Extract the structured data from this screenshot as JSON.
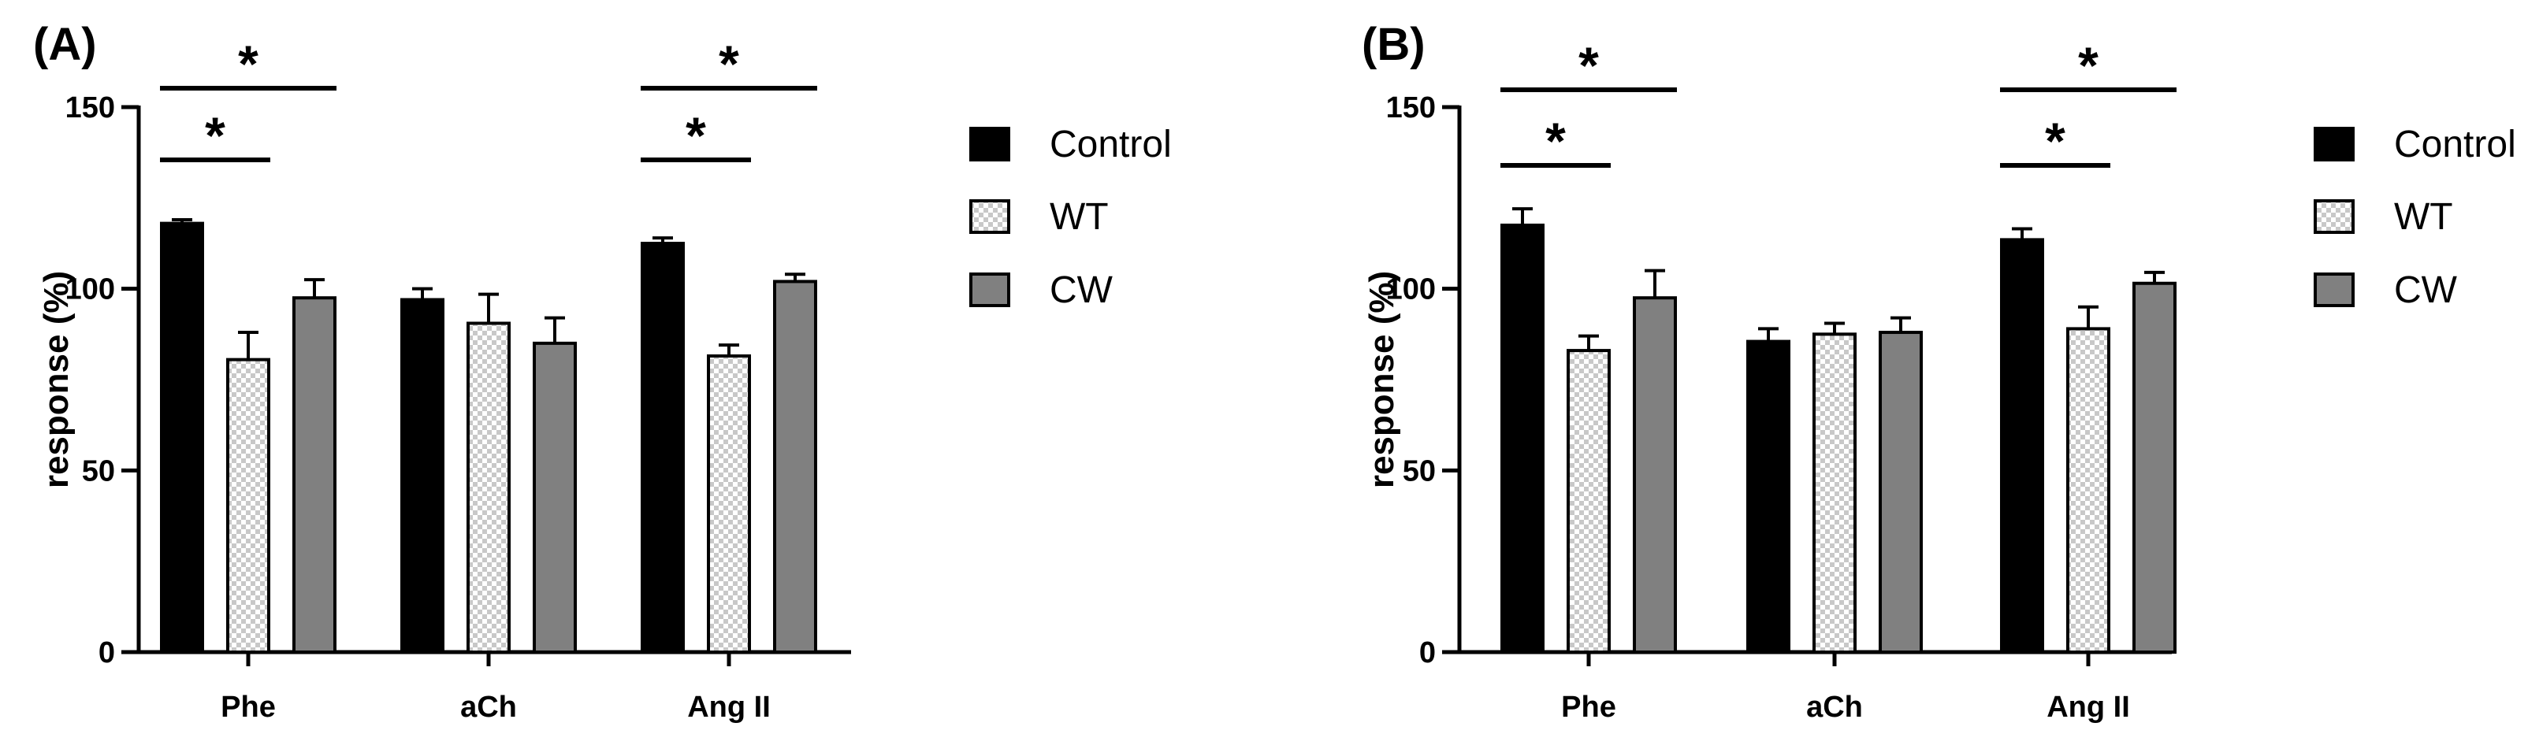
{
  "colors": {
    "control": "#000000",
    "wt_check_a": "#ffffff",
    "wt_check_b": "#c8c8c8",
    "cw": "#808080",
    "axis": "#000000"
  },
  "chart_data": [
    {
      "type": "bar",
      "panel_label": "(A)",
      "categories": [
        "Phe",
        "aCh",
        "Ang II"
      ],
      "series": [
        {
          "name": "Control",
          "values": [
            118,
            97,
            112.5
          ],
          "errors": [
            1,
            3,
            1.5
          ]
        },
        {
          "name": "WT",
          "values": [
            80.5,
            90.5,
            81.5
          ],
          "errors": [
            7.5,
            8,
            3
          ]
        },
        {
          "name": "CW",
          "values": [
            97.5,
            85,
            102
          ],
          "errors": [
            5,
            7,
            2
          ]
        }
      ],
      "ylabel": "response (%)",
      "ylim": [
        0,
        150
      ],
      "yticks": [
        "0",
        "50",
        "100",
        "150"
      ],
      "legend": "right",
      "grid": false,
      "significance": [
        {
          "category": "Phe",
          "from": "Control",
          "to": "WT",
          "label": "*"
        },
        {
          "category": "Phe",
          "from": "Control",
          "to": "CW",
          "label": "*"
        },
        {
          "category": "Ang II",
          "from": "Control",
          "to": "WT",
          "label": "*"
        },
        {
          "category": "Ang II",
          "from": "Control",
          "to": "CW",
          "label": "*"
        }
      ]
    },
    {
      "type": "bar",
      "panel_label": "(B)",
      "categories": [
        "Phe",
        "aCh",
        "Ang II"
      ],
      "series": [
        {
          "name": "Control",
          "values": [
            117.5,
            85.5,
            113.5
          ],
          "errors": [
            4.5,
            3.5,
            3
          ]
        },
        {
          "name": "WT",
          "values": [
            83,
            87.5,
            89
          ],
          "errors": [
            4,
            3,
            6
          ]
        },
        {
          "name": "CW",
          "values": [
            97.5,
            88,
            101.5
          ],
          "errors": [
            7.5,
            4,
            3
          ]
        }
      ],
      "ylabel": "response (%)",
      "ylim": [
        0,
        150
      ],
      "yticks": [
        "0",
        "50",
        "100",
        "150"
      ],
      "legend": "right",
      "grid": false,
      "significance": [
        {
          "category": "Phe",
          "from": "Control",
          "to": "WT",
          "label": "*"
        },
        {
          "category": "Phe",
          "from": "Control",
          "to": "CW",
          "label": "*"
        },
        {
          "category": "Ang II",
          "from": "Control",
          "to": "WT",
          "label": "*"
        },
        {
          "category": "Ang II",
          "from": "Control",
          "to": "CW",
          "label": "*"
        }
      ]
    }
  ]
}
